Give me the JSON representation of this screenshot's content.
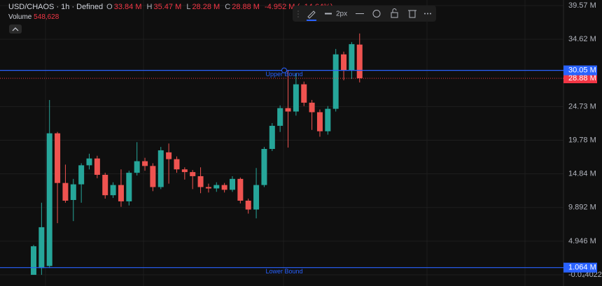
{
  "chart_data": {
    "type": "candlestick",
    "symbol": "USD/CHAOS · 1h · Defined",
    "legend": {
      "o": "O",
      "open": "33.84 M",
      "h": "H",
      "high": "35.47 M",
      "l": "L",
      "low": "28.28 M",
      "c": "C",
      "close": "28.88 M",
      "change": "-4.952 M (−14.64%)"
    },
    "volume_label": "Volume",
    "volume_value": "548,628",
    "toolbar_width": "2px",
    "up_color": "#26a69a",
    "down_color": "#ef5350",
    "open": [
      0,
      1.0,
      1.3,
      20.8,
      13.5,
      11.0,
      13.3,
      16.1,
      17.1,
      14.7,
      11.7,
      13.2,
      10.8,
      15.0,
      16.7,
      16.0,
      12.9,
      18.0,
      17.0,
      15.5,
      15.1,
      14.5,
      12.9,
      12.7,
      13.2,
      12.5,
      14.1,
      10.9,
      9.6,
      13.2,
      18.5,
      21.9,
      24.5,
      24.0,
      28.0,
      25.3,
      23.9,
      21.1,
      24.4,
      32.4,
      30.0,
      33.84
    ],
    "high": [
      4.4,
      10.6,
      25.7,
      21.0,
      16.2,
      14.1,
      16.4,
      17.8,
      17.5,
      15.0,
      13.6,
      15.5,
      15.3,
      19.5,
      17.2,
      16.4,
      18.8,
      19.3,
      17.4,
      15.8,
      15.4,
      15.8,
      13.4,
      13.6,
      13.5,
      14.5,
      14.3,
      11.2,
      15.7,
      18.8,
      22.3,
      24.9,
      30.0,
      29.6,
      28.4,
      25.7,
      24.3,
      24.8,
      33.2,
      32.8,
      34.2,
      35.47
    ],
    "low": [
      0,
      0,
      1.0,
      7.6,
      10.6,
      7.9,
      10.6,
      15.5,
      14.2,
      11.2,
      11.3,
      10.0,
      10.2,
      14.6,
      15.3,
      12.3,
      12.6,
      13.4,
      15.0,
      14.0,
      12.6,
      12.0,
      12.1,
      12.2,
      12.1,
      12.2,
      10.5,
      9.0,
      8.3,
      12.9,
      18.2,
      21.0,
      18.7,
      23.4,
      24.8,
      21.3,
      20.3,
      20.6,
      24.0,
      28.6,
      28.8,
      28.28
    ],
    "close": [
      4.2,
      7.0,
      20.8,
      13.5,
      10.9,
      13.3,
      16.1,
      17.1,
      14.7,
      11.7,
      13.2,
      10.8,
      15.0,
      16.7,
      16.0,
      12.9,
      18.3,
      17.0,
      15.5,
      15.1,
      14.5,
      12.9,
      12.7,
      13.2,
      12.5,
      14.1,
      10.9,
      9.6,
      13.2,
      18.5,
      21.9,
      24.5,
      24.0,
      28.0,
      25.3,
      23.9,
      21.1,
      24.4,
      32.4,
      30.0,
      33.9,
      28.88
    ],
    "ylim": [
      -1.64,
      40.39
    ],
    "yticks": [
      {
        "value": 39.57,
        "label": "39.57 M"
      },
      {
        "value": 34.62,
        "label": "34.62 M"
      },
      {
        "value": 24.73,
        "label": "24.73 M"
      },
      {
        "value": 19.78,
        "label": "19.78 M"
      },
      {
        "value": 14.84,
        "label": "14.84 M"
      },
      {
        "value": 9.892,
        "label": "9.892 M"
      },
      {
        "value": 4.946,
        "label": "4.946 M"
      },
      {
        "value": -4.022e-05,
        "label": "-0.0₄4022"
      }
    ],
    "grid": true,
    "bounds": [
      {
        "name": "Upper Bound",
        "value": 30.05,
        "label": "30.05 M",
        "color": "#2962ff"
      },
      {
        "name": "Lower Bound",
        "value": 1.064,
        "label": "1.064 M",
        "color": "#2962ff"
      }
    ],
    "last_price": {
      "value": 28.88,
      "label": "28.88 M",
      "color": "#f23645"
    }
  }
}
